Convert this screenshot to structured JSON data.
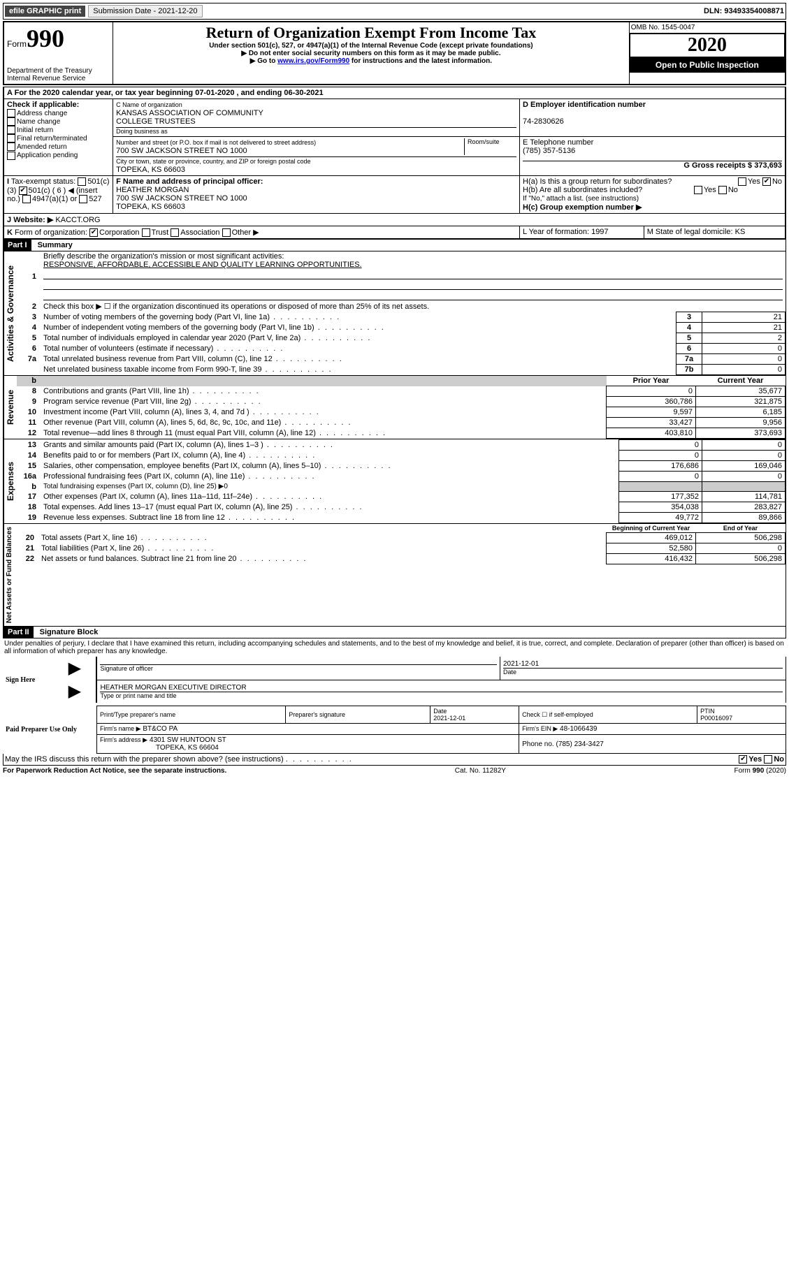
{
  "topbar": {
    "efile": "efile GRAPHIC print",
    "submission_label": "Submission Date - 2021-12-20",
    "dln": "DLN: 93493354008871"
  },
  "header": {
    "form_prefix": "Form",
    "form_number": "990",
    "dept": "Department of the Treasury",
    "irs": "Internal Revenue Service",
    "title": "Return of Organization Exempt From Income Tax",
    "subtitle1": "Under section 501(c), 527, or 4947(a)(1) of the Internal Revenue Code (except private foundations)",
    "subtitle2": "▶ Do not enter social security numbers on this form as it may be made public.",
    "subtitle3_pre": "▶ Go to ",
    "subtitle3_link": "www.irs.gov/Form990",
    "subtitle3_post": " for instructions and the latest information.",
    "omb": "OMB No. 1545-0047",
    "year": "2020",
    "open": "Open to Public Inspection"
  },
  "sectionA": {
    "calendar": "For the 2020 calendar year, or tax year beginning 07-01-2020    , and ending 06-30-2021",
    "check_label": "Check if applicable:",
    "opts": [
      "Address change",
      "Name change",
      "Initial return",
      "Final return/terminated",
      "Amended return",
      "Application pending"
    ],
    "c_label": "Name of organization",
    "org1": "KANSAS ASSOCIATION OF COMMUNITY",
    "org2": "COLLEGE TRUSTEES",
    "dba": "Doing business as",
    "addr_label": "Number and street (or P.O. box if mail is not delivered to street address)",
    "room": "Room/suite",
    "addr": "700 SW JACKSON STREET NO 1000",
    "city_label": "City or town, state or province, country, and ZIP or foreign postal code",
    "city": "TOPEKA, KS  66603",
    "d_label": "D Employer identification number",
    "ein": "74-2830626",
    "e_label": "E Telephone number",
    "phone": "(785) 357-5136",
    "g_label": "G Gross receipts $ 373,693",
    "f_label": "F  Name and address of principal officer:",
    "officer": "HEATHER MORGAN",
    "officer_addr": "700 SW JACKSON STREET NO 1000",
    "officer_city": "TOPEKA, KS  66603",
    "ha": "H(a)  Is this a group return for subordinates?",
    "hb": "H(b)  Are all subordinates included?",
    "hnote": "If \"No,\" attach a list. (see instructions)",
    "hc": "H(c)  Group exemption number ▶",
    "tax_label": "Tax-exempt status:",
    "tax_501c3": "501(c)(3)",
    "tax_501c": "501(c) ( 6 ) ◀ (insert no.)",
    "tax_4947": "4947(a)(1) or",
    "tax_527": "527",
    "website_label": "Website: ▶",
    "website": "KACCT.ORG",
    "k_label": "Form of organization:",
    "k_opts": [
      "Corporation",
      "Trust",
      "Association",
      "Other ▶"
    ],
    "l_label": "L Year of formation: 1997",
    "m_label": "M State of legal domicile: KS"
  },
  "part1": {
    "header": "Part I",
    "title": "Summary",
    "vlabel_ag": "Activities & Governance",
    "vlabel_rev": "Revenue",
    "vlabel_exp": "Expenses",
    "vlabel_net": "Net Assets or Fund Balances",
    "l1": "Briefly describe the organization's mission or most significant activities:",
    "l1text": "RESPONSIVE, AFFORDABLE, ACCESSIBLE AND QUALITY LEARNING OPPORTUNITIES.",
    "l2": "Check this box ▶ ☐  if the organization discontinued its operations or disposed of more than 25% of its net assets.",
    "rows_ag": [
      {
        "n": "3",
        "t": "Number of voting members of the governing body (Part VI, line 1a)",
        "b": "3",
        "v": "21"
      },
      {
        "n": "4",
        "t": "Number of independent voting members of the governing body (Part VI, line 1b)",
        "b": "4",
        "v": "21"
      },
      {
        "n": "5",
        "t": "Total number of individuals employed in calendar year 2020 (Part V, line 2a)",
        "b": "5",
        "v": "2"
      },
      {
        "n": "6",
        "t": "Total number of volunteers (estimate if necessary)",
        "b": "6",
        "v": "0"
      },
      {
        "n": "7a",
        "t": "Total unrelated business revenue from Part VIII, column (C), line 12",
        "b": "7a",
        "v": "0"
      },
      {
        "n": "",
        "t": "Net unrelated business taxable income from Form 990-T, line 39",
        "b": "7b",
        "v": "0"
      }
    ],
    "col_prior": "Prior Year",
    "col_current": "Current Year",
    "col_begin": "Beginning of Current Year",
    "col_end": "End of Year",
    "rows_rev": [
      {
        "n": "8",
        "t": "Contributions and grants (Part VIII, line 1h)",
        "p": "0",
        "c": "35,677"
      },
      {
        "n": "9",
        "t": "Program service revenue (Part VIII, line 2g)",
        "p": "360,786",
        "c": "321,875"
      },
      {
        "n": "10",
        "t": "Investment income (Part VIII, column (A), lines 3, 4, and 7d )",
        "p": "9,597",
        "c": "6,185"
      },
      {
        "n": "11",
        "t": "Other revenue (Part VIII, column (A), lines 5, 6d, 8c, 9c, 10c, and 11e)",
        "p": "33,427",
        "c": "9,956"
      },
      {
        "n": "12",
        "t": "Total revenue—add lines 8 through 11 (must equal Part VIII, column (A), line 12)",
        "p": "403,810",
        "c": "373,693"
      }
    ],
    "rows_exp": [
      {
        "n": "13",
        "t": "Grants and similar amounts paid (Part IX, column (A), lines 1–3 )",
        "p": "0",
        "c": "0"
      },
      {
        "n": "14",
        "t": "Benefits paid to or for members (Part IX, column (A), line 4)",
        "p": "0",
        "c": "0"
      },
      {
        "n": "15",
        "t": "Salaries, other compensation, employee benefits (Part IX, column (A), lines 5–10)",
        "p": "176,686",
        "c": "169,046"
      },
      {
        "n": "16a",
        "t": "Professional fundraising fees (Part IX, column (A), line 11e)",
        "p": "0",
        "c": "0"
      }
    ],
    "l16b": "Total fundraising expenses (Part IX, column (D), line 25) ▶0",
    "rows_exp2": [
      {
        "n": "17",
        "t": "Other expenses (Part IX, column (A), lines 11a–11d, 11f–24e)",
        "p": "177,352",
        "c": "114,781"
      },
      {
        "n": "18",
        "t": "Total expenses. Add lines 13–17 (must equal Part IX, column (A), line 25)",
        "p": "354,038",
        "c": "283,827"
      },
      {
        "n": "19",
        "t": "Revenue less expenses. Subtract line 18 from line 12",
        "p": "49,772",
        "c": "89,866"
      }
    ],
    "rows_net": [
      {
        "n": "20",
        "t": "Total assets (Part X, line 16)",
        "p": "469,012",
        "c": "506,298"
      },
      {
        "n": "21",
        "t": "Total liabilities (Part X, line 26)",
        "p": "52,580",
        "c": "0"
      },
      {
        "n": "22",
        "t": "Net assets or fund balances. Subtract line 21 from line 20",
        "p": "416,432",
        "c": "506,298"
      }
    ]
  },
  "part2": {
    "header": "Part II",
    "title": "Signature Block",
    "decl": "Under penalties of perjury, I declare that I have examined this return, including accompanying schedules and statements, and to the best of my knowledge and belief, it is true, correct, and complete. Declaration of preparer (other than officer) is based on all information of which preparer has any knowledge.",
    "sign_here": "Sign Here",
    "sig_officer": "Signature of officer",
    "sig_date": "2021-12-01",
    "sig_date_label": "Date",
    "officer_name": "HEATHER MORGAN  EXECUTIVE DIRECTOR",
    "type_name": "Type or print name and title",
    "paid": "Paid Preparer Use Only",
    "print_name": "Print/Type preparer's name",
    "prep_sig": "Preparer's signature",
    "date_label": "Date",
    "date_val": "2021-12-01",
    "check_self": "Check ☐ if self-employed",
    "ptin_label": "PTIN",
    "ptin": "P00016097",
    "firm_name_label": "Firm's name     ▶",
    "firm_name": "BT&CO PA",
    "firm_ein_label": "Firm's EIN ▶",
    "firm_ein": "48-1066439",
    "firm_addr_label": "Firm's address ▶",
    "firm_addr1": "4301 SW HUNTOON ST",
    "firm_addr2": "TOPEKA, KS  66604",
    "phone_label": "Phone no. (785) 234-3427",
    "discuss": "May the IRS discuss this return with the preparer shown above? (see instructions)",
    "yes": "Yes",
    "no": "No"
  },
  "footer": {
    "pra": "For Paperwork Reduction Act Notice, see the separate instructions.",
    "cat": "Cat. No. 11282Y",
    "form": "Form 990 (2020)"
  }
}
